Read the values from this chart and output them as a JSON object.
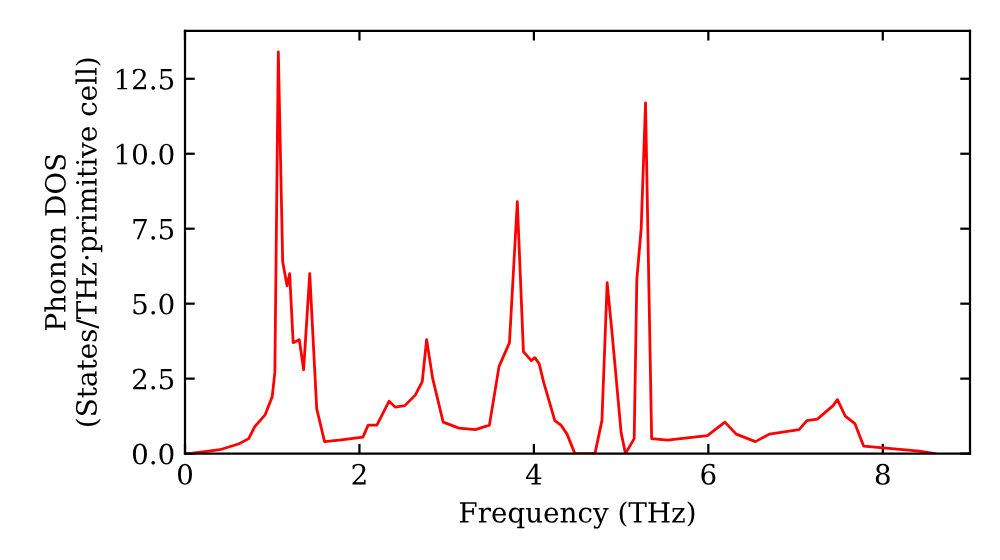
{
  "chart_data": {
    "type": "line",
    "xlabel": "Frequency (THz)",
    "ylabel": "Phonon DOS\n(States/THz·primitive cell)",
    "xlim": [
      0,
      9
    ],
    "ylim": [
      0,
      14.1
    ],
    "xticks": [
      0,
      2,
      4,
      6,
      8
    ],
    "yticks": [
      {
        "value": 0,
        "label": "0.0"
      },
      2.5,
      {
        "value": 5,
        "label": "5.0"
      },
      7.5,
      {
        "value": 10,
        "label": "10.0"
      },
      12.5
    ],
    "grid": false,
    "marker": "none",
    "line_style": "solid",
    "series": [
      {
        "color": "#ff0000",
        "x": [
          0.05,
          0.4,
          0.62,
          0.73,
          0.8,
          0.92,
          1.0,
          1.03,
          1.07,
          1.12,
          1.17,
          1.2,
          1.24,
          1.31,
          1.36,
          1.43,
          1.51,
          1.6,
          1.77,
          2.04,
          2.1,
          2.2,
          2.34,
          2.41,
          2.52,
          2.64,
          2.72,
          2.77,
          2.84,
          2.96,
          3.14,
          3.33,
          3.49,
          3.6,
          3.72,
          3.81,
          3.88,
          3.97,
          4.01,
          4.06,
          4.11,
          4.17,
          4.24,
          4.31,
          4.38,
          4.47,
          4.7,
          4.78,
          4.84,
          4.9,
          5.0,
          5.05,
          5.15,
          5.18,
          5.23,
          5.28,
          5.35,
          5.53,
          5.99,
          6.1,
          6.19,
          6.32,
          6.54,
          6.7,
          7.04,
          7.13,
          7.25,
          7.43,
          7.48,
          7.57,
          7.68,
          7.78,
          8.42,
          8.6
        ],
        "values": [
          0,
          0.13,
          0.33,
          0.5,
          0.9,
          1.3,
          1.9,
          2.7,
          13.4,
          6.4,
          5.6,
          6.0,
          3.7,
          3.8,
          2.8,
          6.0,
          1.5,
          0.4,
          0.45,
          0.55,
          0.95,
          0.95,
          1.75,
          1.55,
          1.6,
          1.95,
          2.4,
          3.8,
          2.5,
          1.05,
          0.85,
          0.8,
          0.95,
          2.9,
          3.7,
          8.4,
          3.4,
          3.1,
          3.2,
          3.0,
          2.4,
          1.8,
          1.1,
          0.95,
          0.65,
          0,
          0,
          1.1,
          5.7,
          3.9,
          0.7,
          0,
          0.5,
          5.8,
          7.5,
          11.7,
          0.5,
          0.45,
          0.6,
          0.85,
          1.05,
          0.65,
          0.4,
          0.65,
          0.8,
          1.1,
          1.15,
          1.6,
          1.8,
          1.25,
          1.0,
          0.25,
          0.08,
          0
        ]
      }
    ]
  }
}
